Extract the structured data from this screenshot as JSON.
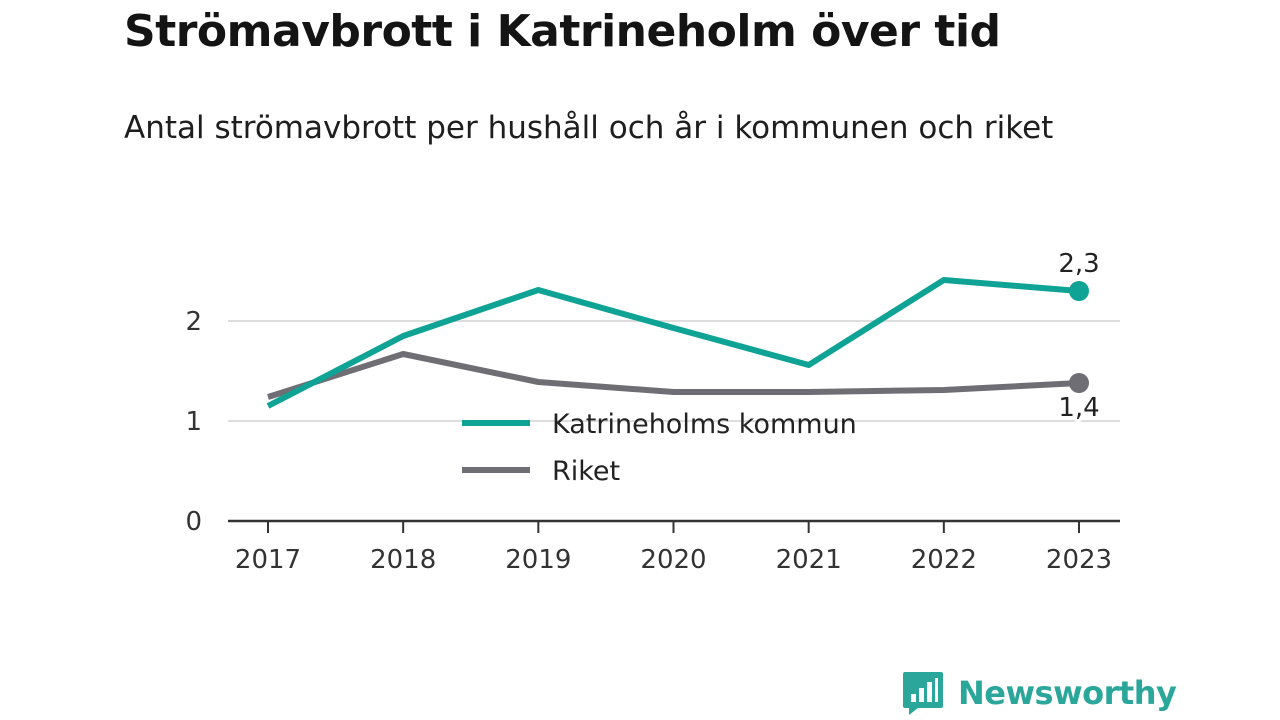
{
  "title": "Strömavbrott i Katrineholm över tid",
  "subtitle": "Antal strömavbrott per hushåll och år i kommunen och riket",
  "brand": "Newsworthy",
  "colors": {
    "kommun": "#0fa396",
    "riket": "#6f6e74",
    "grid": "#dddddd",
    "axis": "#333333"
  },
  "chart_data": {
    "type": "line",
    "x": [
      "2017",
      "2018",
      "2019",
      "2020",
      "2021",
      "2022",
      "2023"
    ],
    "yticks": [
      "0",
      "1",
      "2"
    ],
    "ylim": [
      0,
      2.6
    ],
    "grid": true,
    "legend": "center",
    "series": [
      {
        "name": "Katrineholms kommun",
        "values": [
          1.15,
          1.85,
          2.31,
          1.93,
          1.56,
          2.41,
          2.3
        ],
        "end_label": "2,3"
      },
      {
        "name": "Riket",
        "values": [
          1.24,
          1.67,
          1.39,
          1.29,
          1.29,
          1.31,
          1.38
        ],
        "end_label": "1,4"
      }
    ]
  }
}
